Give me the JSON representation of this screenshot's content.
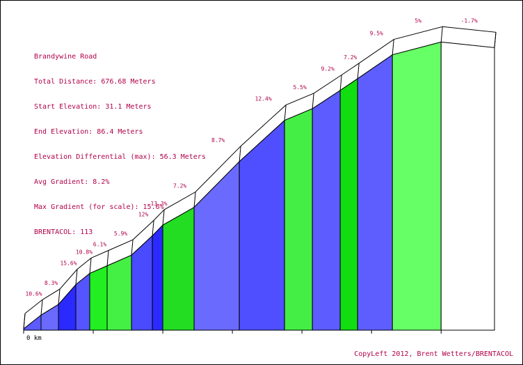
{
  "info": {
    "road": "Brandywine Road",
    "total_distance": "Total Distance: 676.68 Meters",
    "start_elevation": "Start Elevation: 31.1 Meters",
    "end_elevation": "End Elevation: 86.4 Meters",
    "elevation_differential": "Elevation Differential (max): 56.3 Meters",
    "avg_gradient": "Avg Gradient: 8.2%",
    "max_gradient": "Max Gradient (for scale): 15.6%",
    "brentacol": "BRENTACOL: 113"
  },
  "credit": "CopyLeft 2012, Brent Wetters/BRENTACOL",
  "colors": {
    "label": "#b0004a"
  },
  "chart_data": {
    "type": "area",
    "title": "Brandywine Road",
    "x_unit": "km",
    "x_start_label": "0 km",
    "x": [
      0,
      0.025,
      0.05,
      0.075,
      0.095,
      0.12,
      0.155,
      0.185,
      0.2,
      0.245,
      0.31,
      0.375,
      0.415,
      0.455,
      0.48,
      0.53,
      0.6,
      0.6767
    ],
    "elevation_m": [
      31.1,
      33.8,
      35.9,
      39.8,
      42.0,
      43.5,
      45.6,
      49.4,
      51.5,
      55.0,
      64.0,
      72.1,
      74.4,
      78.0,
      80.3,
      85.0,
      87.5,
      86.4
    ],
    "segments": [
      {
        "gradient_pct": 10.6,
        "gradient_label": "10.6%",
        "color": "#5b5bff"
      },
      {
        "gradient_pct": 8.3,
        "gradient_label": "8.3%",
        "color": "#6a6aff"
      },
      {
        "gradient_pct": 15.6,
        "gradient_label": "15.6%",
        "color": "#2a2aff"
      },
      {
        "gradient_pct": 10.8,
        "gradient_label": "10.8%",
        "color": "#5555ff"
      },
      {
        "gradient_pct": 6.1,
        "gradient_label": "6.1%",
        "color": "#22ee22"
      },
      {
        "gradient_pct": 5.9,
        "gradient_label": "5.9%",
        "color": "#44f044"
      },
      {
        "gradient_pct": 12,
        "gradient_label": "12%",
        "color": "#4a4aff"
      },
      {
        "gradient_pct": 13.3,
        "gradient_label": "13.3%",
        "color": "#2b2bff"
      },
      {
        "gradient_pct": 7.2,
        "gradient_label": "7.2%",
        "color": "#22dd22"
      },
      {
        "gradient_pct": 8.7,
        "gradient_label": "8.7%",
        "color": "#6a6aff"
      },
      {
        "gradient_pct": 12.4,
        "gradient_label": "12.4%",
        "color": "#4f4fff"
      },
      {
        "gradient_pct": 5.5,
        "gradient_label": "5.5%",
        "color": "#44ee44"
      },
      {
        "gradient_pct": 9.2,
        "gradient_label": "9.2%",
        "color": "#5c5cff"
      },
      {
        "gradient_pct": 7.2,
        "gradient_label": "7.2%",
        "color": "#11dd11"
      },
      {
        "gradient_pct": 9.5,
        "gradient_label": "9.5%",
        "color": "#5e5eff"
      },
      {
        "gradient_pct": 5,
        "gradient_label": "5%",
        "color": "#66ff66"
      },
      {
        "gradient_pct": -1.7,
        "gradient_label": "-1.7%",
        "color": "#ffffff"
      }
    ]
  }
}
